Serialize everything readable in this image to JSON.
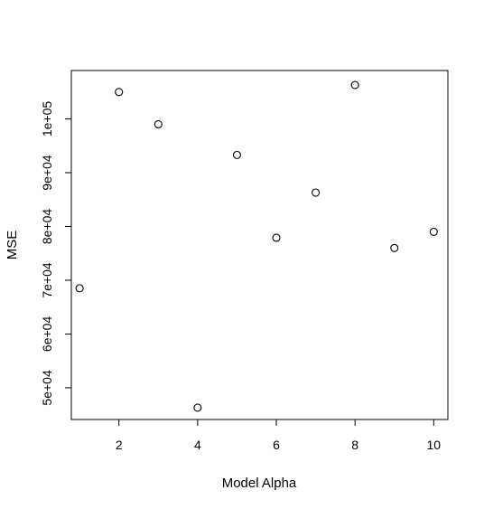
{
  "chart_data": {
    "type": "scatter",
    "title": "",
    "xlabel": "Model Alpha",
    "ylabel": "MSE",
    "x": [
      1,
      2,
      3,
      4,
      5,
      6,
      7,
      8,
      9,
      10
    ],
    "y": [
      68500,
      105000,
      99000,
      46300,
      93300,
      77900,
      86300,
      106300,
      76000,
      79000
    ],
    "xlim": [
      0.79,
      10.36
    ],
    "ylim": [
      44100,
      109000
    ],
    "x_ticks": [
      2,
      4,
      6,
      8,
      10
    ],
    "x_tick_labels": [
      "2",
      "4",
      "6",
      "8",
      "10"
    ],
    "y_ticks": [
      50000,
      60000,
      70000,
      80000,
      90000,
      100000
    ],
    "y_tick_labels": [
      "5e+04",
      "6e+04",
      "7e+04",
      "8e+04",
      "9e+04",
      "1e+05"
    ],
    "marker": "open-circle",
    "marker_color": "#000000",
    "grid": false,
    "legend": "none"
  }
}
